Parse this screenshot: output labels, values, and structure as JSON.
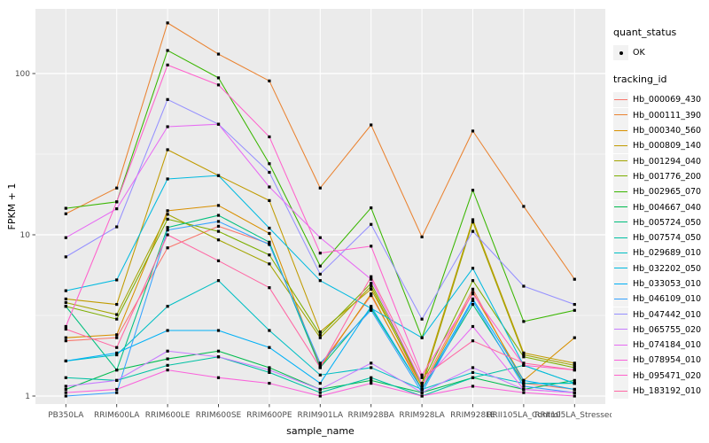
{
  "colors": {
    "figure_bg": "#FFFFFF",
    "panel_bg": "#EBEBEB",
    "grid": "#FFFFFF",
    "tick_label": "#4D4D4D",
    "tick_mark": "#333333",
    "axis_title": "#000000",
    "legend_key_bg": "#F2F2F2",
    "point": "#000000"
  },
  "chart_data": {
    "type": "line",
    "title": "",
    "xlabel": "sample_name",
    "ylabel": "FPKM + 1",
    "y_scale": "log10",
    "y_ticks": [
      "1",
      "10",
      "100"
    ],
    "y_tick_values": [
      1,
      10,
      100
    ],
    "y_minor_values": [
      3.1623,
      31.623
    ],
    "ylim": [
      0.93,
      250
    ],
    "grid": true,
    "legend_position": "right",
    "point_marker": "black-square-point",
    "categories": [
      "PB350LA",
      "RRIM600LA",
      "RRIM600LE",
      "RRIM600SE",
      "RRIM600PE",
      "RRIM901LA",
      "RRIM928BA",
      "RRIM928LA",
      "RRIM928LE",
      "RRII105LA_Control",
      "RRII105LA_Stressed"
    ],
    "legend": {
      "quant_title": "quant_status",
      "quant_items": [
        {
          "label": "OK",
          "marker": "point-icon",
          "color": "#000000"
        }
      ],
      "series_title": "tracking_id"
    },
    "series": [
      {
        "name": "Hb_000069_430",
        "color": "#F8766D",
        "values": [
          2.2,
          2.3,
          8.3,
          11.3,
          8.8,
          1.55,
          4.2,
          1.15,
          4.6,
          1.2,
          1.1
        ]
      },
      {
        "name": "Hb_000111_390",
        "color": "#EA8331",
        "values": [
          13.5,
          19.5,
          206,
          132,
          90,
          19.5,
          48,
          9.7,
          44,
          15,
          5.3
        ]
      },
      {
        "name": "Hb_000340_560",
        "color": "#D89000",
        "values": [
          2.3,
          2.4,
          14.1,
          15.2,
          10.2,
          1.5,
          4.3,
          1.1,
          4.4,
          1.25,
          2.3
        ]
      },
      {
        "name": "Hb_000809_140",
        "color": "#C09B00",
        "values": [
          4.0,
          3.7,
          33.7,
          23.3,
          16.3,
          2.5,
          4.6,
          1.2,
          12.4,
          1.85,
          1.6
        ]
      },
      {
        "name": "Hb_001294_040",
        "color": "#A3A500",
        "values": [
          3.8,
          3.2,
          13.4,
          9.3,
          6.6,
          2.3,
          4.8,
          1.15,
          12.0,
          1.8,
          1.55
        ]
      },
      {
        "name": "Hb_001776_200",
        "color": "#7CAE00",
        "values": [
          3.6,
          3.0,
          12.5,
          10.5,
          7.5,
          2.4,
          5.0,
          1.2,
          5.2,
          1.75,
          1.5
        ]
      },
      {
        "name": "Hb_002965_070",
        "color": "#39B600",
        "values": [
          14.6,
          16,
          139,
          94,
          27.6,
          6.4,
          14.7,
          2.3,
          18.9,
          2.9,
          3.4
        ]
      },
      {
        "name": "Hb_004667_040",
        "color": "#00BB4E",
        "values": [
          1.1,
          1.45,
          1.7,
          1.9,
          1.5,
          1.1,
          1.25,
          1.05,
          1.3,
          1.1,
          1.25
        ]
      },
      {
        "name": "Hb_005724_050",
        "color": "#00BF7D",
        "values": [
          3.6,
          1.45,
          11.1,
          13.2,
          9.0,
          1.5,
          3.5,
          1.1,
          3.7,
          1.2,
          1.2
        ]
      },
      {
        "name": "Hb_007574_050",
        "color": "#00C1A3",
        "values": [
          1.3,
          1.25,
          1.55,
          1.75,
          1.4,
          1.05,
          1.3,
          1.0,
          1.3,
          1.55,
          1.2
        ]
      },
      {
        "name": "Hb_029689_010",
        "color": "#00BFC4",
        "values": [
          1.65,
          1.8,
          3.6,
          5.2,
          2.55,
          1.35,
          1.5,
          1.1,
          1.4,
          1.2,
          1.2
        ]
      },
      {
        "name": "Hb_032202_050",
        "color": "#00BAE0",
        "values": [
          4.5,
          5.25,
          22.2,
          23.3,
          11.0,
          5.2,
          3.5,
          2.3,
          6.2,
          1.55,
          1.2
        ]
      },
      {
        "name": "Hb_033053_010",
        "color": "#00B0F6",
        "values": [
          1.65,
          1.85,
          2.55,
          2.55,
          2.0,
          1.2,
          3.6,
          1.1,
          4.0,
          1.25,
          1.1
        ]
      },
      {
        "name": "Hb_046109_010",
        "color": "#35A2FF",
        "values": [
          1.0,
          1.05,
          10.7,
          12.1,
          8.7,
          1.6,
          3.4,
          1.05,
          3.9,
          1.15,
          1.05
        ]
      },
      {
        "name": "Hb_047442_010",
        "color": "#9590FF",
        "values": [
          7.3,
          11.2,
          69,
          48.5,
          24.4,
          5.7,
          11.6,
          3.0,
          10.5,
          4.8,
          3.7
        ]
      },
      {
        "name": "Hb_065755_020",
        "color": "#C77CFF",
        "values": [
          1.15,
          1.25,
          1.9,
          1.75,
          1.45,
          1.1,
          1.6,
          1.05,
          1.5,
          1.1,
          1.05
        ]
      },
      {
        "name": "Hb_074184_010",
        "color": "#E76BF3",
        "values": [
          9.6,
          14.5,
          46.8,
          48.5,
          19.8,
          9.6,
          5.3,
          1.2,
          2.7,
          1.1,
          1.05
        ]
      },
      {
        "name": "Hb_078954_010",
        "color": "#FA62DB",
        "values": [
          1.05,
          1.1,
          1.45,
          1.3,
          1.2,
          1.0,
          1.2,
          1.0,
          1.15,
          1.05,
          1.0
        ]
      },
      {
        "name": "Hb_095471_020",
        "color": "#FF61CC",
        "values": [
          2.7,
          16,
          113,
          85,
          40.5,
          7.7,
          8.5,
          1.35,
          4.3,
          1.55,
          1.45
        ]
      },
      {
        "name": "Hb_183192_010",
        "color": "#FF67A4",
        "values": [
          2.6,
          2.0,
          10.0,
          6.9,
          4.7,
          1.5,
          5.5,
          1.3,
          2.2,
          1.6,
          1.45
        ]
      }
    ]
  }
}
